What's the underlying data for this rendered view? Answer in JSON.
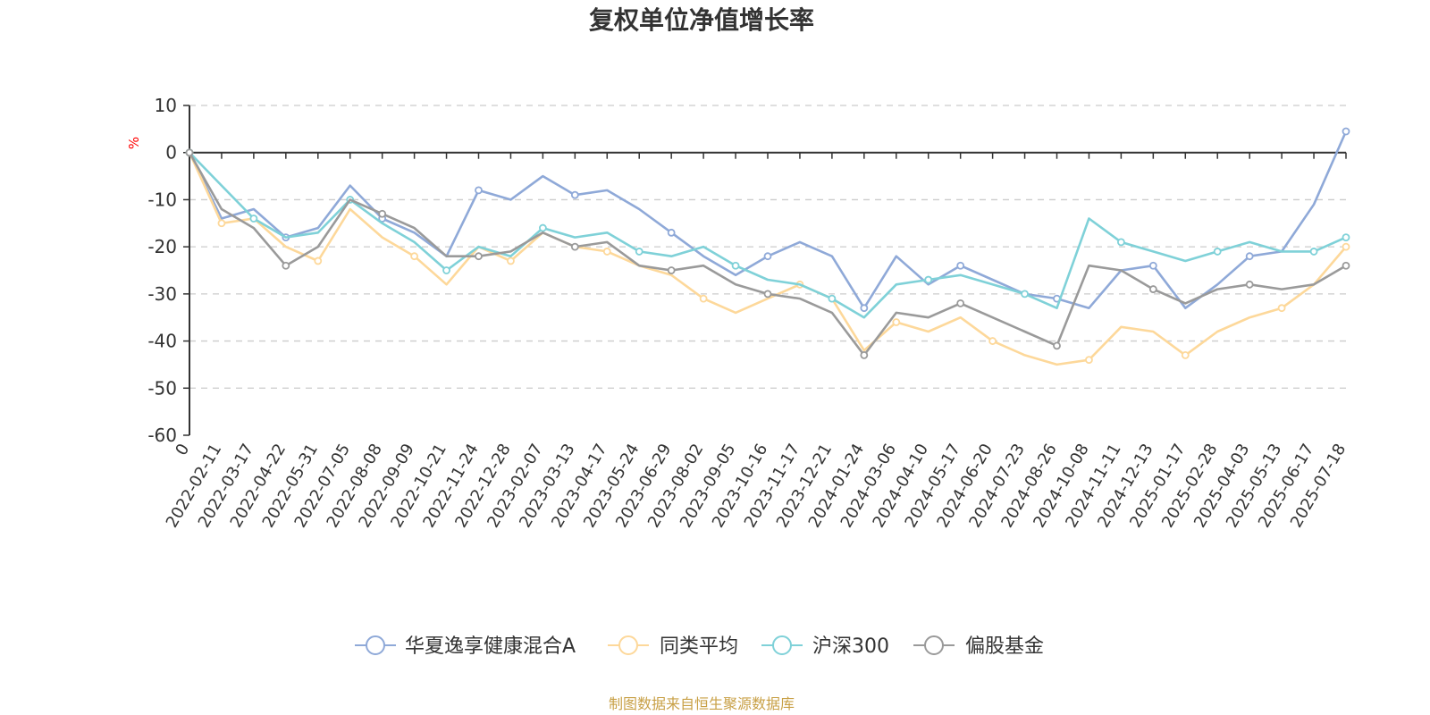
{
  "chart_data": {
    "type": "line",
    "title": "复权单位净值增长率",
    "ylabel": "%",
    "ylim": [
      -60,
      10
    ],
    "yticks": [
      10,
      0,
      -10,
      -20,
      -30,
      -40,
      -50,
      -60
    ],
    "grid": true,
    "legend_position": "bottom-center",
    "x": [
      "0",
      "2022-02-11",
      "2022-03-17",
      "2022-04-22",
      "2022-05-31",
      "2022-07-05",
      "2022-08-08",
      "2022-09-09",
      "2022-10-21",
      "2022-11-24",
      "2022-12-28",
      "2023-02-07",
      "2023-03-13",
      "2023-04-17",
      "2023-05-24",
      "2023-06-29",
      "2023-08-02",
      "2023-09-05",
      "2023-10-16",
      "2023-11-17",
      "2023-12-21",
      "2024-01-24",
      "2024-03-06",
      "2024-04-10",
      "2024-05-17",
      "2024-06-20",
      "2024-07-23",
      "2024-08-26",
      "2024-10-08",
      "2024-11-11",
      "2024-12-13",
      "2025-01-17",
      "2025-02-28",
      "2025-04-03",
      "2025-05-13",
      "2025-06-17",
      "2025-07-18"
    ],
    "series": [
      {
        "name": "华夏逸享健康混合A",
        "color": "#8fa9d8",
        "values": [
          0,
          -14,
          -12,
          -18,
          -16,
          -7,
          -14,
          -17,
          -22,
          -8,
          -10,
          -5,
          -9,
          -8,
          -12,
          -17,
          -22,
          -26,
          -22,
          -19,
          -22,
          -33,
          -22,
          -28,
          -24,
          -27,
          -30,
          -31,
          -33,
          -25,
          -24,
          -33,
          -28,
          -22,
          -21,
          -11,
          4.5
        ]
      },
      {
        "name": "同类平均",
        "color": "#fdd89a",
        "values": [
          0,
          -15,
          -14,
          -20,
          -23,
          -12,
          -18,
          -22,
          -28,
          -20,
          -23,
          -17,
          -20,
          -21,
          -24,
          -26,
          -31,
          -34,
          -31,
          -28,
          -31,
          -42,
          -36,
          -38,
          -35,
          -40,
          -43,
          -45,
          -44,
          -37,
          -38,
          -43,
          -38,
          -35,
          -33,
          -28,
          -20
        ]
      },
      {
        "name": "沪深300",
        "color": "#7fd1d8",
        "values": [
          0,
          -7,
          -14,
          -18,
          -17,
          -10,
          -15,
          -19,
          -25,
          -20,
          -22,
          -16,
          -18,
          -17,
          -21,
          -22,
          -20,
          -24,
          -27,
          -28,
          -31,
          -35,
          -28,
          -27,
          -26,
          -28,
          -30,
          -33,
          -14,
          -19,
          -21,
          -23,
          -21,
          -19,
          -21,
          -21,
          -18
        ]
      },
      {
        "name": "偏股基金",
        "color": "#9a9a9a",
        "values": [
          0,
          -12,
          -16,
          -24,
          -20,
          -10,
          -13,
          -16,
          -22,
          -22,
          -21,
          -17,
          -20,
          -19,
          -24,
          -25,
          -24,
          -28,
          -30,
          -31,
          -34,
          -43,
          -34,
          -35,
          -32,
          -35,
          -38,
          -41,
          -24,
          -25,
          -29,
          -32,
          -29,
          -28,
          -29,
          -28,
          -24
        ]
      }
    ],
    "source": "制图数据来自恒生聚源数据库"
  },
  "colors": {
    "axis": "#333333",
    "grid": "#cccccc",
    "source": "#c8a046"
  }
}
